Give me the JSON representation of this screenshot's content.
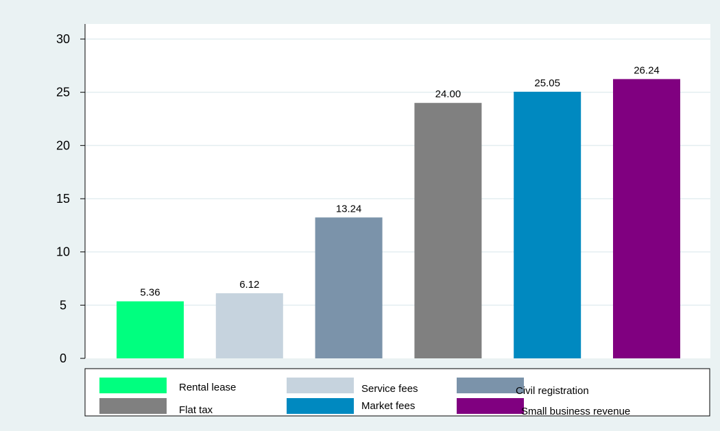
{
  "chart_data": {
    "type": "bar",
    "categories": [
      "Rental lease",
      "Service fees",
      "Civil registration",
      "Flat tax",
      "Market fees",
      "Small business revenue"
    ],
    "values": [
      5.36,
      6.12,
      13.24,
      24.0,
      25.05,
      26.24
    ],
    "value_labels": [
      "5.36",
      "6.12",
      "13.24",
      "24.00",
      "25.05",
      "26.24"
    ],
    "colors": [
      "#00ff7f",
      "#c6d3de",
      "#7b93aa",
      "#808080",
      "#0089c0",
      "#800080"
    ],
    "yticks": [
      0,
      5,
      10,
      15,
      20,
      25,
      30
    ],
    "ytick_labels": [
      "0",
      "5",
      "10",
      "15",
      "20",
      "25",
      "30"
    ],
    "ylim": [
      0,
      30
    ],
    "title": "",
    "xlabel": "",
    "ylabel": "",
    "grid": true,
    "legend": {
      "position": "bottom",
      "columns": 3,
      "entries": [
        "Rental lease",
        "Service fees",
        "Civil registration",
        "Flat tax",
        "Market fees",
        "Small business revenue"
      ]
    }
  },
  "colors": {
    "background": "#eaf2f3",
    "plot_background": "#ffffff",
    "grid": "#e3edf0",
    "axis": "#000000"
  }
}
